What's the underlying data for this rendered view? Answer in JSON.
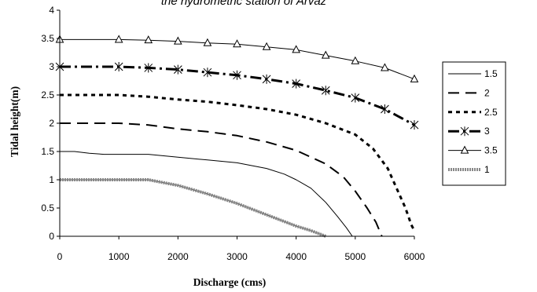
{
  "chart_data": {
    "type": "line",
    "title": "the hydrometric station of Arvaz",
    "xlabel": "Discharge (cms)",
    "ylabel": "Tidal height(m)",
    "xlim": [
      0,
      6000
    ],
    "ylim": [
      0,
      4
    ],
    "xticks": [
      "0",
      "1000",
      "2000",
      "3000",
      "4000",
      "5000",
      "6000"
    ],
    "yticks": [
      "0",
      "0.5",
      "1",
      "1.5",
      "2",
      "2.5",
      "3",
      "3.5",
      "4"
    ],
    "grid": false,
    "legend_position": "right",
    "series": [
      {
        "name": "1.5",
        "color": "#000000",
        "style": "thin-solid",
        "marker": "none",
        "points": [
          [
            0,
            1.5
          ],
          [
            250,
            1.5
          ],
          [
            500,
            1.47
          ],
          [
            750,
            1.45
          ],
          [
            1000,
            1.45
          ],
          [
            1500,
            1.45
          ],
          [
            2000,
            1.4
          ],
          [
            2500,
            1.35
          ],
          [
            3000,
            1.3
          ],
          [
            3500,
            1.2
          ],
          [
            3800,
            1.1
          ],
          [
            4000,
            1.0
          ],
          [
            4250,
            0.85
          ],
          [
            4500,
            0.6
          ],
          [
            4700,
            0.35
          ],
          [
            4850,
            0.15
          ],
          [
            4950,
            0
          ]
        ]
      },
      {
        "name": "2",
        "color": "#000000",
        "style": "long-dash",
        "marker": "none",
        "points": [
          [
            0,
            2.0
          ],
          [
            500,
            2.0
          ],
          [
            1000,
            2.0
          ],
          [
            1500,
            1.97
          ],
          [
            2000,
            1.9
          ],
          [
            2500,
            1.85
          ],
          [
            3000,
            1.78
          ],
          [
            3500,
            1.67
          ],
          [
            4000,
            1.52
          ],
          [
            4500,
            1.28
          ],
          [
            4800,
            1.05
          ],
          [
            5000,
            0.8
          ],
          [
            5200,
            0.5
          ],
          [
            5350,
            0.25
          ],
          [
            5450,
            0
          ]
        ]
      },
      {
        "name": "2.5",
        "color": "#000000",
        "style": "short-dash-bold",
        "marker": "none",
        "points": [
          [
            0,
            2.5
          ],
          [
            500,
            2.5
          ],
          [
            1000,
            2.5
          ],
          [
            1500,
            2.47
          ],
          [
            2000,
            2.42
          ],
          [
            2500,
            2.38
          ],
          [
            3000,
            2.32
          ],
          [
            3500,
            2.25
          ],
          [
            4000,
            2.15
          ],
          [
            4500,
            2.0
          ],
          [
            5000,
            1.8
          ],
          [
            5300,
            1.55
          ],
          [
            5550,
            1.2
          ],
          [
            5700,
            0.85
          ],
          [
            5850,
            0.5
          ],
          [
            5950,
            0.2
          ],
          [
            6000,
            0.1
          ]
        ]
      },
      {
        "name": "3",
        "color": "#000000",
        "style": "dash-dot-bold",
        "marker": "asterisk",
        "points": [
          [
            0,
            3.0
          ],
          [
            1000,
            3.0
          ],
          [
            1500,
            2.98
          ],
          [
            2000,
            2.95
          ],
          [
            2500,
            2.9
          ],
          [
            3000,
            2.85
          ],
          [
            3500,
            2.78
          ],
          [
            4000,
            2.7
          ],
          [
            4500,
            2.58
          ],
          [
            5000,
            2.45
          ],
          [
            5500,
            2.25
          ],
          [
            6000,
            1.97
          ]
        ]
      },
      {
        "name": "3.5",
        "color": "#000000",
        "style": "thin-solid",
        "marker": "triangle",
        "points": [
          [
            0,
            3.48
          ],
          [
            1000,
            3.48
          ],
          [
            1500,
            3.47
          ],
          [
            2000,
            3.45
          ],
          [
            2500,
            3.42
          ],
          [
            3000,
            3.4
          ],
          [
            3500,
            3.35
          ],
          [
            4000,
            3.3
          ],
          [
            4500,
            3.2
          ],
          [
            5000,
            3.1
          ],
          [
            5500,
            2.98
          ],
          [
            6000,
            2.78
          ]
        ]
      },
      {
        "name": "1",
        "color": "#888888",
        "style": "thick-gray-dotted",
        "marker": "none",
        "points": [
          [
            0,
            1.0
          ],
          [
            500,
            1.0
          ],
          [
            1000,
            1.0
          ],
          [
            1500,
            1.0
          ],
          [
            2000,
            0.9
          ],
          [
            2500,
            0.75
          ],
          [
            3000,
            0.58
          ],
          [
            3500,
            0.38
          ],
          [
            4000,
            0.18
          ],
          [
            4250,
            0.1
          ],
          [
            4500,
            0
          ]
        ]
      }
    ]
  }
}
